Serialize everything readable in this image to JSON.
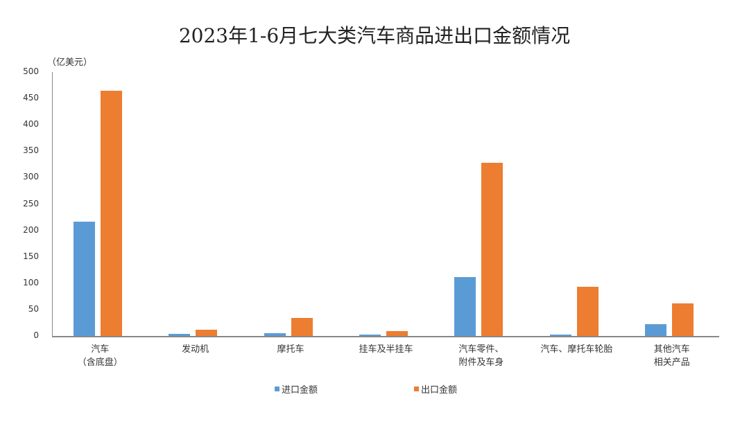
{
  "chart_data": {
    "type": "bar",
    "title": "2023年1-6月七大类汽车商品进出口金额情况",
    "xlabel": "",
    "ylabel": "（亿美元）",
    "ylim": [
      0,
      500
    ],
    "yticks": [
      "500",
      "450",
      "400",
      "350",
      "300",
      "250",
      "200",
      "150",
      "100",
      "50",
      "0"
    ],
    "grid": false,
    "legend_position": "bottom",
    "categories": [
      "汽车（含底盘）",
      "发动机",
      "摩托车",
      "挂车及半挂车",
      "汽车零件、附件及车身",
      "汽车、摩托车轮胎",
      "其他汽车相关产品"
    ],
    "category_lines": [
      [
        "汽车",
        "（含底盘）"
      ],
      [
        "发动机",
        ""
      ],
      [
        "摩托车",
        ""
      ],
      [
        "挂车及半挂车",
        ""
      ],
      [
        "汽车零件、",
        "附件及车身"
      ],
      [
        "汽车、摩托车轮胎",
        ""
      ],
      [
        "其他汽车",
        "相关产品"
      ]
    ],
    "series": [
      {
        "name": "进口金额",
        "color": "#5b9bd5",
        "values": [
          216,
          4,
          5,
          2.5,
          112,
          2,
          22
        ]
      },
      {
        "name": "出口金额",
        "color": "#ed7d31",
        "values": [
          465,
          12,
          34,
          9,
          328,
          93,
          62
        ]
      }
    ]
  }
}
